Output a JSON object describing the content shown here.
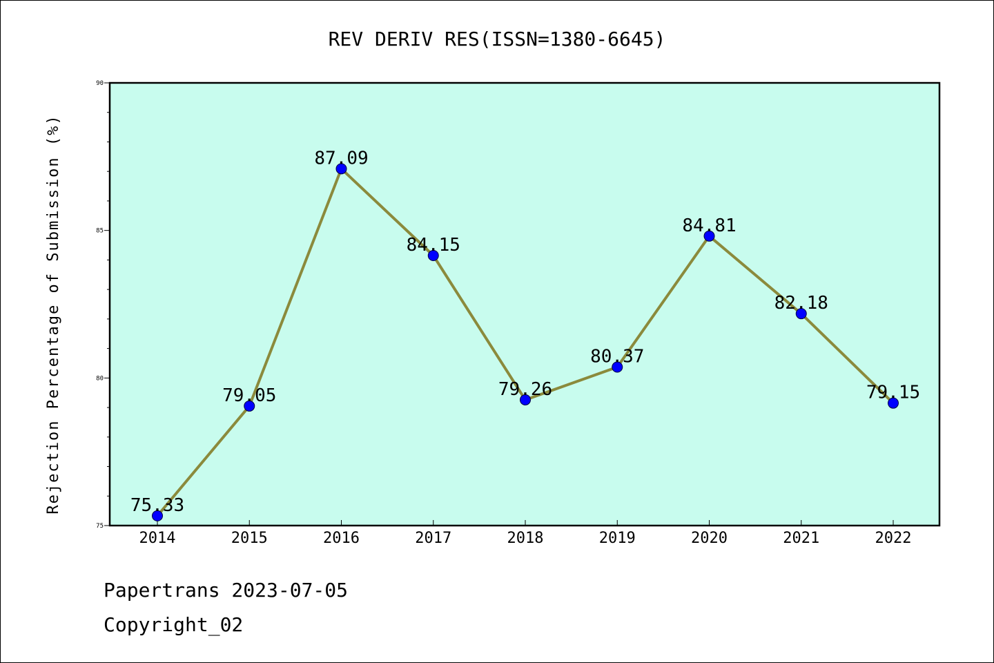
{
  "chart_data": {
    "type": "line",
    "title": "REV DERIV RES(ISSN=1380-6645)",
    "xlabel": "",
    "ylabel": "Rejection Percentage of Submission (%)",
    "categories": [
      "2014",
      "2015",
      "2016",
      "2017",
      "2018",
      "2019",
      "2020",
      "2021",
      "2022"
    ],
    "values": [
      75.33,
      79.05,
      87.09,
      84.15,
      79.26,
      80.37,
      84.81,
      82.18,
      79.15
    ],
    "data_labels": [
      "75.33",
      "79.05",
      "87.09",
      "84.15",
      "79.26",
      "80.37",
      "84.81",
      "82.18",
      "79.15"
    ],
    "ylim": [
      75,
      90
    ],
    "yticks": [
      "75",
      "80",
      "85",
      "90"
    ],
    "grid": false,
    "colors": {
      "plot_background": "#c8fcee",
      "line": "#8b8a3c",
      "marker": "#0000ff"
    }
  },
  "footer": {
    "line1": "Papertrans 2023-07-05",
    "line2": "Copyright_02"
  }
}
